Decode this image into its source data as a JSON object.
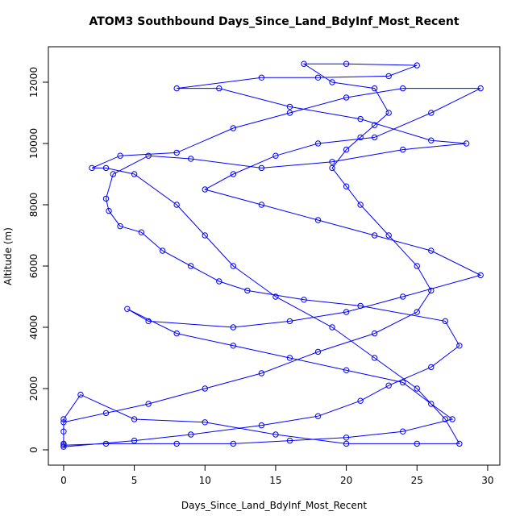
{
  "chart_data": {
    "type": "line",
    "title": "ATOM3 Southbound Days_Since_Land_BdyInf_Most_Recent",
    "x_label": "Days_Since_Land_BdyInf_Most_Recent",
    "y_label": "Altitude (m)",
    "color": "#0000ff",
    "markers": true,
    "xlim": [
      -1.08,
      30.86
    ],
    "ylim": [
      -500,
      13158
    ],
    "xticks": [
      0,
      5,
      10,
      15,
      20,
      25,
      30
    ],
    "yticks": [
      0,
      2000,
      4000,
      6000,
      8000,
      10000,
      12000
    ],
    "x": [
      0,
      0,
      0,
      1.2,
      5,
      10,
      15,
      20,
      25,
      28,
      27,
      25,
      22,
      19,
      15,
      12,
      10,
      8,
      5,
      3,
      2,
      4,
      8,
      12,
      16,
      20,
      24,
      29.5,
      26,
      22,
      18,
      15,
      12,
      10,
      14,
      18,
      22,
      26,
      29.5,
      24,
      20,
      16,
      12,
      6,
      4.5,
      8,
      12,
      16,
      20,
      24,
      26,
      27.5,
      24,
      20,
      16,
      12,
      8,
      3,
      0,
      0,
      3,
      6,
      10,
      14,
      18,
      22,
      25,
      26,
      25,
      23,
      21,
      20,
      19,
      20,
      21,
      22,
      23,
      22,
      19,
      17,
      20,
      25,
      23,
      18,
      14,
      8,
      11,
      16,
      21,
      26,
      28.5,
      24,
      19,
      14,
      9,
      6,
      3.5,
      3,
      3.2,
      4,
      5.5,
      7,
      9,
      11,
      13,
      17,
      21,
      27,
      28,
      26,
      23,
      21,
      18,
      14,
      9,
      5,
      0
    ],
    "y": [
      200,
      600,
      1000,
      1800,
      1000,
      900,
      500,
      200,
      200,
      200,
      1000,
      2000,
      3000,
      4000,
      5000,
      6000,
      7000,
      8000,
      9000,
      9200,
      9200,
      9600,
      9700,
      10500,
      11000,
      11500,
      11800,
      11800,
      11000,
      10200,
      10000,
      9600,
      9000,
      8500,
      8000,
      7500,
      7000,
      6500,
      5700,
      5000,
      4500,
      4200,
      4000,
      4200,
      4600,
      3800,
      3400,
      3000,
      2600,
      2200,
      1500,
      1000,
      600,
      400,
      300,
      200,
      200,
      200,
      150,
      900,
      1200,
      1500,
      2000,
      2500,
      3200,
      3800,
      4500,
      5200,
      6000,
      7000,
      8000,
      8600,
      9200,
      9800,
      10200,
      10600,
      11000,
      11800,
      12000,
      12600,
      12600,
      12550,
      12200,
      12150,
      12150,
      11800,
      11800,
      11200,
      10800,
      10100,
      10000,
      9800,
      9400,
      9200,
      9500,
      9600,
      9000,
      8200,
      7800,
      7300,
      7100,
      6500,
      6000,
      5500,
      5200,
      4900,
      4700,
      4200,
      3400,
      2700,
      2100,
      1600,
      1100,
      800,
      500,
      300,
      100
    ]
  }
}
